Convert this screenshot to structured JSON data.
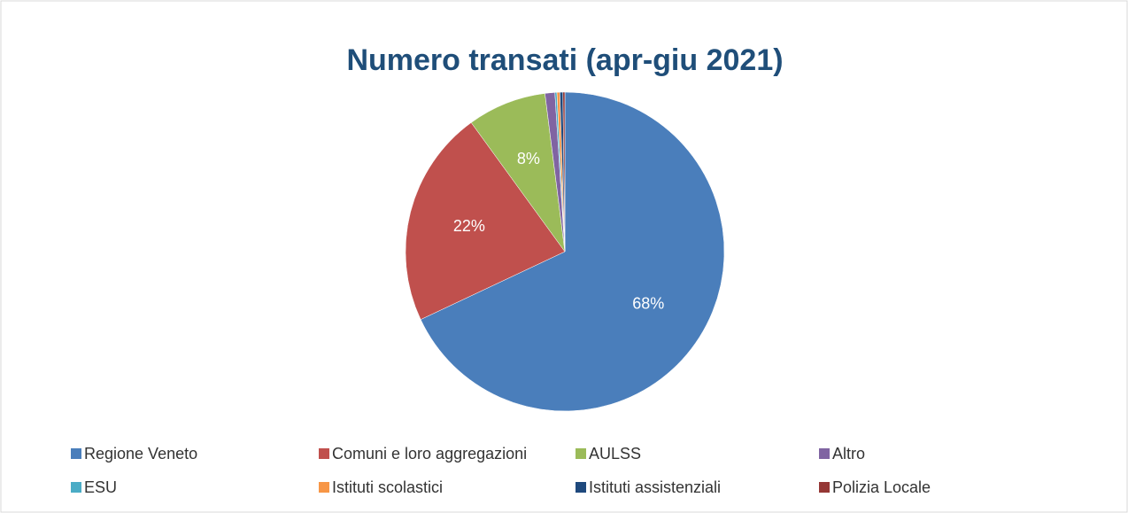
{
  "chart_data": {
    "type": "pie",
    "title": "Numero transati (apr-giu 2021)",
    "categories": [
      "Regione Veneto",
      "Comuni e loro aggregazioni",
      "AULSS",
      "Altro",
      "ESU",
      "Istituti scolastici",
      "Istituti assistenziali",
      "Polizia Locale"
    ],
    "values": [
      68,
      22,
      8,
      1,
      0.2,
      0.3,
      0.3,
      0.2
    ],
    "value_labels": [
      "68%",
      "22%",
      "8%",
      null,
      null,
      null,
      null,
      null
    ],
    "colors": [
      "#4a7ebb",
      "#c0504d",
      "#9bbb59",
      "#8064a2",
      "#4bacc6",
      "#f79646",
      "#1f497d",
      "#953735"
    ],
    "legend": "bottom"
  }
}
